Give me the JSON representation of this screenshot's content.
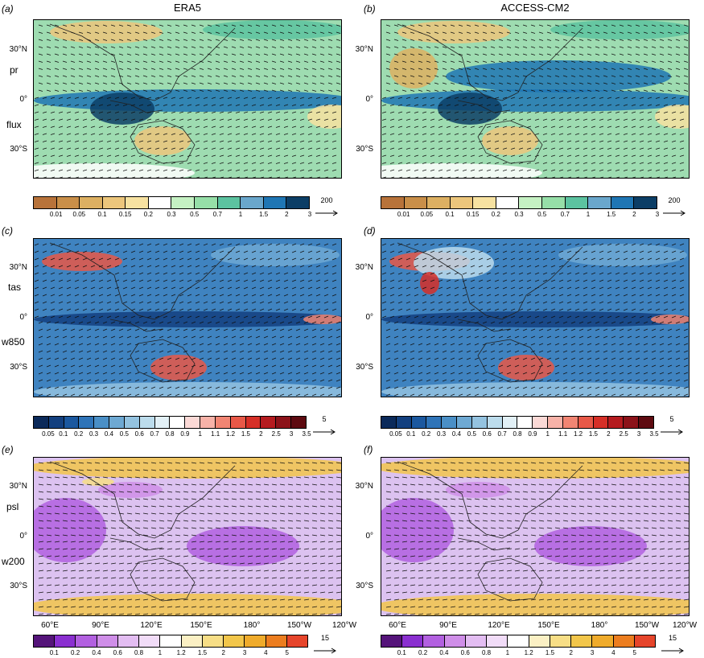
{
  "columns": [
    "ERA5",
    "ACCESS-CM2"
  ],
  "panel_letters": [
    "(a)",
    "(b)",
    "(c)",
    "(d)",
    "(e)",
    "(f)"
  ],
  "rows": [
    {
      "labels": [
        "pr",
        "flux"
      ],
      "ref_vector": "200",
      "scale": [
        "#b8733a",
        "#c98f49",
        "#ddb062",
        "#ecc67c",
        "#f7e2a1",
        "#ffffff",
        "#c5f1c3",
        "#96dfa8",
        "#5cc3a0",
        "#6aa7cc",
        "#1f76b4",
        "#0c3e66"
      ],
      "scale_labels": [
        "0.01",
        "0.05",
        "0.1",
        "0.15",
        "0.2",
        "0.3",
        "0.5",
        "0.7",
        "1",
        "1.5",
        "2",
        "3"
      ],
      "base_color": "#9edcb1"
    },
    {
      "labels": [
        "tas",
        "w850"
      ],
      "ref_vector": "5",
      "scale": [
        "#0b2a5a",
        "#13407f",
        "#1b589f",
        "#2f74b8",
        "#4a8fc6",
        "#6ea9d3",
        "#94c3e0",
        "#bcdcec",
        "#e2f0f6",
        "#ffffff",
        "#fbd9d6",
        "#f7b2a8",
        "#f18573",
        "#e85847",
        "#d62f27",
        "#b51b1f",
        "#8c1219",
        "#5e0a10"
      ],
      "scale_labels": [
        "0.05",
        "0.1",
        "0.2",
        "0.3",
        "0.4",
        "0.5",
        "0.6",
        "0.7",
        "0.8",
        "0.9",
        "1",
        "1.1",
        "1.2",
        "1.5",
        "2",
        "2.5",
        "3",
        "3.5"
      ],
      "base_color": "#3f83c0"
    },
    {
      "labels": [
        "psl",
        "w200"
      ],
      "ref_vector": "15",
      "scale": [
        "#55147a",
        "#8a2fd0",
        "#b260e0",
        "#cf8ee8",
        "#e3bdf2",
        "#f1dcf8",
        "#ffffff",
        "#fbf0c4",
        "#f7de86",
        "#f2c64a",
        "#efab2b",
        "#ec7d1f",
        "#e6452b"
      ],
      "scale_labels": [
        "0.1",
        "0.2",
        "0.4",
        "0.6",
        "0.8",
        "1",
        "1.2",
        "1.5",
        "2",
        "3",
        "4",
        "5"
      ],
      "base_color": "#dcc2f0"
    }
  ],
  "lat_labels": [
    "30°N",
    "0°",
    "30°S"
  ],
  "lon_labels": [
    "60°E",
    "90°E",
    "120°E",
    "150°E",
    "180°",
    "150°W",
    "120°W"
  ]
}
